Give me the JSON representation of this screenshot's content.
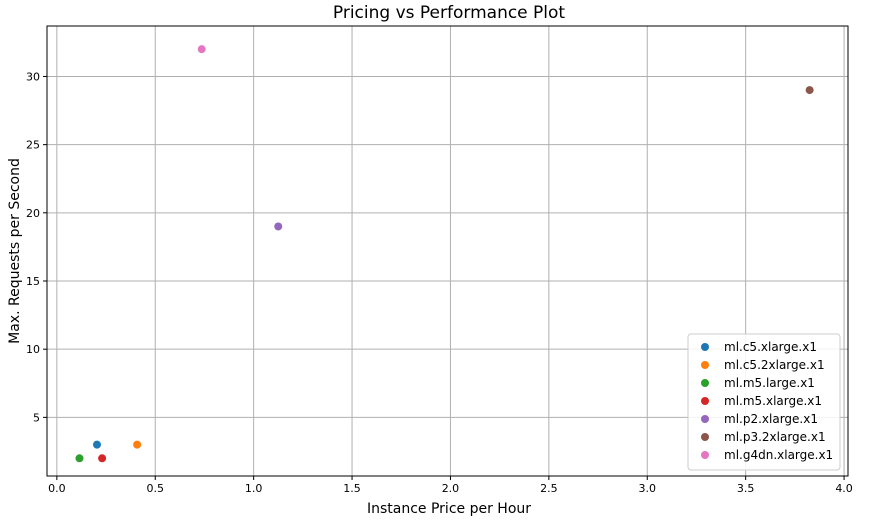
{
  "chart_data": {
    "type": "scatter",
    "title": "Pricing vs Performance Plot",
    "xlabel": "Instance Price per Hour",
    "ylabel": "Max. Requests per Second",
    "xlim": [
      -0.05,
      4.02
    ],
    "ylim": [
      0.7,
      33.7
    ],
    "xticks": [
      0.0,
      0.5,
      1.0,
      1.5,
      2.0,
      2.5,
      3.0,
      3.5,
      4.0
    ],
    "xtick_labels": [
      "0.0",
      "0.5",
      "1.0",
      "1.5",
      "2.0",
      "2.5",
      "3.0",
      "3.5",
      "4.0"
    ],
    "yticks": [
      5,
      10,
      15,
      20,
      25,
      30
    ],
    "ytick_labels": [
      "5",
      "10",
      "15",
      "20",
      "25",
      "30"
    ],
    "grid": true,
    "legend_position": "bottom-right",
    "series": [
      {
        "name": "ml.c5.xlarge.x1",
        "color": "#1f77b4",
        "points": [
          {
            "x": 0.204,
            "y": 3
          }
        ]
      },
      {
        "name": "ml.c5.2xlarge.x1",
        "color": "#ff7f0e",
        "points": [
          {
            "x": 0.408,
            "y": 3
          }
        ]
      },
      {
        "name": "ml.m5.large.x1",
        "color": "#2ca02c",
        "points": [
          {
            "x": 0.115,
            "y": 2
          }
        ]
      },
      {
        "name": "ml.m5.xlarge.x1",
        "color": "#d62728",
        "points": [
          {
            "x": 0.23,
            "y": 2
          }
        ]
      },
      {
        "name": "ml.p2.xlarge.x1",
        "color": "#9467bd",
        "points": [
          {
            "x": 1.125,
            "y": 19
          }
        ]
      },
      {
        "name": "ml.p3.2xlarge.x1",
        "color": "#8c564b",
        "points": [
          {
            "x": 3.825,
            "y": 29
          }
        ]
      },
      {
        "name": "ml.g4dn.xlarge.x1",
        "color": "#e377c2",
        "points": [
          {
            "x": 0.736,
            "y": 32
          }
        ]
      }
    ]
  }
}
